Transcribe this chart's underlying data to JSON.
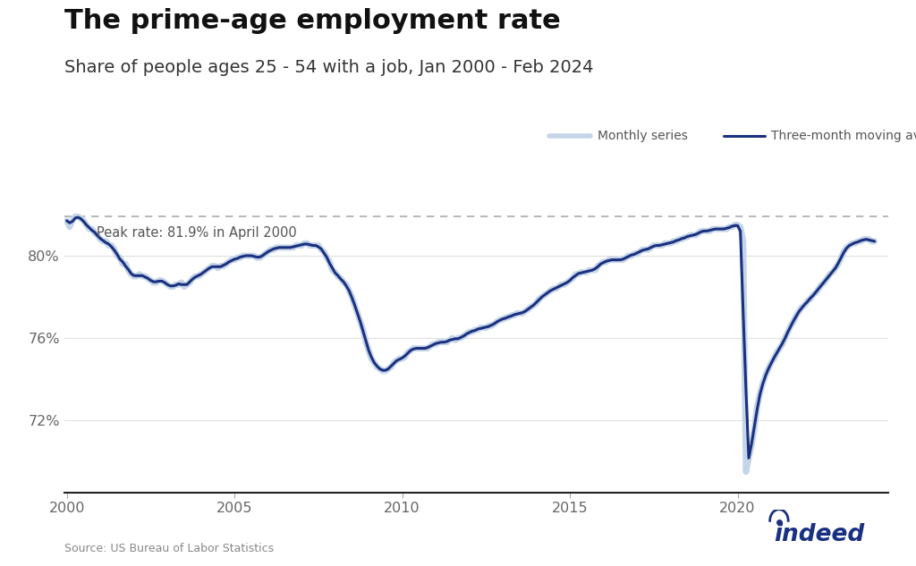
{
  "title": "The prime-age employment rate",
  "subtitle": "Share of people ages 25 - 54 with a job, Jan 2000 - Feb 2024",
  "source": "Source: US Bureau of Labor Statistics",
  "peak_label": "Peak rate: 81.9% in April 2000",
  "peak_value": 81.9,
  "legend_monthly": "Monthly series",
  "legend_3month": "Three-month moving average",
  "monthly_color": "#c5d5e8",
  "ma_color": "#1a3080",
  "peak_line_color": "#aaaaaa",
  "background_color": "#ffffff",
  "title_fontsize": 22,
  "subtitle_fontsize": 14,
  "yticks": [
    72,
    76,
    80
  ],
  "ytick_labels": [
    "72%",
    "76%",
    "80%"
  ],
  "ylim": [
    68.5,
    82.8
  ],
  "xlim": [
    1999.92,
    2024.5
  ],
  "xlabel_ticks": [
    2000,
    2005,
    2010,
    2015,
    2020
  ],
  "indeed_color": "#1a3080",
  "data": {
    "dates_monthly": [
      2000.0,
      2000.083,
      2000.167,
      2000.25,
      2000.333,
      2000.417,
      2000.5,
      2000.583,
      2000.667,
      2000.75,
      2000.833,
      2000.917,
      2001.0,
      2001.083,
      2001.167,
      2001.25,
      2001.333,
      2001.417,
      2001.5,
      2001.583,
      2001.667,
      2001.75,
      2001.833,
      2001.917,
      2002.0,
      2002.083,
      2002.167,
      2002.25,
      2002.333,
      2002.417,
      2002.5,
      2002.583,
      2002.667,
      2002.75,
      2002.833,
      2002.917,
      2003.0,
      2003.083,
      2003.167,
      2003.25,
      2003.333,
      2003.417,
      2003.5,
      2003.583,
      2003.667,
      2003.75,
      2003.833,
      2003.917,
      2004.0,
      2004.083,
      2004.167,
      2004.25,
      2004.333,
      2004.417,
      2004.5,
      2004.583,
      2004.667,
      2004.75,
      2004.833,
      2004.917,
      2005.0,
      2005.083,
      2005.167,
      2005.25,
      2005.333,
      2005.417,
      2005.5,
      2005.583,
      2005.667,
      2005.75,
      2005.833,
      2005.917,
      2006.0,
      2006.083,
      2006.167,
      2006.25,
      2006.333,
      2006.417,
      2006.5,
      2006.583,
      2006.667,
      2006.75,
      2006.833,
      2006.917,
      2007.0,
      2007.083,
      2007.167,
      2007.25,
      2007.333,
      2007.417,
      2007.5,
      2007.583,
      2007.667,
      2007.75,
      2007.833,
      2007.917,
      2008.0,
      2008.083,
      2008.167,
      2008.25,
      2008.333,
      2008.417,
      2008.5,
      2008.583,
      2008.667,
      2008.75,
      2008.833,
      2008.917,
      2009.0,
      2009.083,
      2009.167,
      2009.25,
      2009.333,
      2009.417,
      2009.5,
      2009.583,
      2009.667,
      2009.75,
      2009.833,
      2009.917,
      2010.0,
      2010.083,
      2010.167,
      2010.25,
      2010.333,
      2010.417,
      2010.5,
      2010.583,
      2010.667,
      2010.75,
      2010.833,
      2010.917,
      2011.0,
      2011.083,
      2011.167,
      2011.25,
      2011.333,
      2011.417,
      2011.5,
      2011.583,
      2011.667,
      2011.75,
      2011.833,
      2011.917,
      2012.0,
      2012.083,
      2012.167,
      2012.25,
      2012.333,
      2012.417,
      2012.5,
      2012.583,
      2012.667,
      2012.75,
      2012.833,
      2012.917,
      2013.0,
      2013.083,
      2013.167,
      2013.25,
      2013.333,
      2013.417,
      2013.5,
      2013.583,
      2013.667,
      2013.75,
      2013.833,
      2013.917,
      2014.0,
      2014.083,
      2014.167,
      2014.25,
      2014.333,
      2014.417,
      2014.5,
      2014.583,
      2014.667,
      2014.75,
      2014.833,
      2014.917,
      2015.0,
      2015.083,
      2015.167,
      2015.25,
      2015.333,
      2015.417,
      2015.5,
      2015.583,
      2015.667,
      2015.75,
      2015.833,
      2015.917,
      2016.0,
      2016.083,
      2016.167,
      2016.25,
      2016.333,
      2016.417,
      2016.5,
      2016.583,
      2016.667,
      2016.75,
      2016.833,
      2016.917,
      2017.0,
      2017.083,
      2017.167,
      2017.25,
      2017.333,
      2017.417,
      2017.5,
      2017.583,
      2017.667,
      2017.75,
      2017.833,
      2017.917,
      2018.0,
      2018.083,
      2018.167,
      2018.25,
      2018.333,
      2018.417,
      2018.5,
      2018.583,
      2018.667,
      2018.75,
      2018.833,
      2018.917,
      2019.0,
      2019.083,
      2019.167,
      2019.25,
      2019.333,
      2019.417,
      2019.5,
      2019.583,
      2019.667,
      2019.75,
      2019.833,
      2019.917,
      2020.0,
      2020.083,
      2020.167,
      2020.25,
      2020.333,
      2020.417,
      2020.5,
      2020.583,
      2020.667,
      2020.75,
      2020.833,
      2020.917,
      2021.0,
      2021.083,
      2021.167,
      2021.25,
      2021.333,
      2021.417,
      2021.5,
      2021.583,
      2021.667,
      2021.75,
      2021.833,
      2021.917,
      2022.0,
      2022.083,
      2022.167,
      2022.25,
      2022.333,
      2022.417,
      2022.5,
      2022.583,
      2022.667,
      2022.75,
      2022.833,
      2022.917,
      2023.0,
      2023.083,
      2023.167,
      2023.25,
      2023.333,
      2023.417,
      2023.5,
      2023.583,
      2023.667,
      2023.75,
      2023.833,
      2023.917,
      2024.0,
      2024.083
    ],
    "values_monthly": [
      81.7,
      81.4,
      81.7,
      81.9,
      81.9,
      81.8,
      81.7,
      81.5,
      81.3,
      81.3,
      81.1,
      81.0,
      80.8,
      80.7,
      80.7,
      80.5,
      80.5,
      80.3,
      80.0,
      79.9,
      79.6,
      79.6,
      79.3,
      79.1,
      79.0,
      79.0,
      79.1,
      79.0,
      79.0,
      78.9,
      78.8,
      78.7,
      78.7,
      78.8,
      78.8,
      78.7,
      78.6,
      78.5,
      78.5,
      78.6,
      78.6,
      78.7,
      78.5,
      78.6,
      78.7,
      78.9,
      79.0,
      79.0,
      79.1,
      79.2,
      79.3,
      79.4,
      79.5,
      79.5,
      79.4,
      79.5,
      79.5,
      79.6,
      79.7,
      79.8,
      79.8,
      79.9,
      79.9,
      80.0,
      80.0,
      80.0,
      80.0,
      80.0,
      79.9,
      79.9,
      80.0,
      80.1,
      80.2,
      80.3,
      80.3,
      80.4,
      80.4,
      80.4,
      80.4,
      80.4,
      80.4,
      80.4,
      80.5,
      80.5,
      80.5,
      80.6,
      80.6,
      80.5,
      80.5,
      80.5,
      80.5,
      80.3,
      80.2,
      79.9,
      79.7,
      79.3,
      79.2,
      79.0,
      78.9,
      78.7,
      78.6,
      78.3,
      78.0,
      77.6,
      77.2,
      76.8,
      76.4,
      75.8,
      75.4,
      75.0,
      74.8,
      74.6,
      74.5,
      74.4,
      74.4,
      74.5,
      74.6,
      74.8,
      74.9,
      75.0,
      75.0,
      75.1,
      75.3,
      75.4,
      75.5,
      75.5,
      75.5,
      75.5,
      75.5,
      75.5,
      75.6,
      75.7,
      75.7,
      75.8,
      75.8,
      75.8,
      75.8,
      75.9,
      76.0,
      75.9,
      76.0,
      76.0,
      76.1,
      76.2,
      76.3,
      76.3,
      76.4,
      76.4,
      76.5,
      76.5,
      76.5,
      76.6,
      76.6,
      76.7,
      76.8,
      76.9,
      76.9,
      77.0,
      77.0,
      77.1,
      77.1,
      77.2,
      77.2,
      77.2,
      77.3,
      77.4,
      77.5,
      77.6,
      77.7,
      77.9,
      78.0,
      78.1,
      78.2,
      78.3,
      78.4,
      78.4,
      78.5,
      78.6,
      78.6,
      78.7,
      78.8,
      78.9,
      79.1,
      79.1,
      79.2,
      79.2,
      79.2,
      79.3,
      79.3,
      79.3,
      79.5,
      79.6,
      79.7,
      79.7,
      79.8,
      79.8,
      79.8,
      79.8,
      79.8,
      79.8,
      79.9,
      80.0,
      80.0,
      80.1,
      80.1,
      80.2,
      80.3,
      80.3,
      80.3,
      80.4,
      80.5,
      80.5,
      80.5,
      80.5,
      80.6,
      80.6,
      80.6,
      80.7,
      80.7,
      80.8,
      80.8,
      80.9,
      80.9,
      81.0,
      81.0,
      81.0,
      81.1,
      81.2,
      81.2,
      81.2,
      81.2,
      81.3,
      81.3,
      81.3,
      81.3,
      81.3,
      81.3,
      81.4,
      81.4,
      81.5,
      81.5,
      81.4,
      80.7,
      69.5,
      70.2,
      70.8,
      71.6,
      72.7,
      73.3,
      73.8,
      74.2,
      74.5,
      74.8,
      75.0,
      75.3,
      75.5,
      75.7,
      76.0,
      76.3,
      76.6,
      76.8,
      77.1,
      77.3,
      77.5,
      77.6,
      77.8,
      77.9,
      78.1,
      78.2,
      78.4,
      78.6,
      78.7,
      78.9,
      79.1,
      79.2,
      79.4,
      79.6,
      79.9,
      80.2,
      80.4,
      80.5,
      80.6,
      80.6,
      80.7,
      80.7,
      80.8,
      80.8,
      80.8,
      80.7,
      80.7
    ]
  }
}
